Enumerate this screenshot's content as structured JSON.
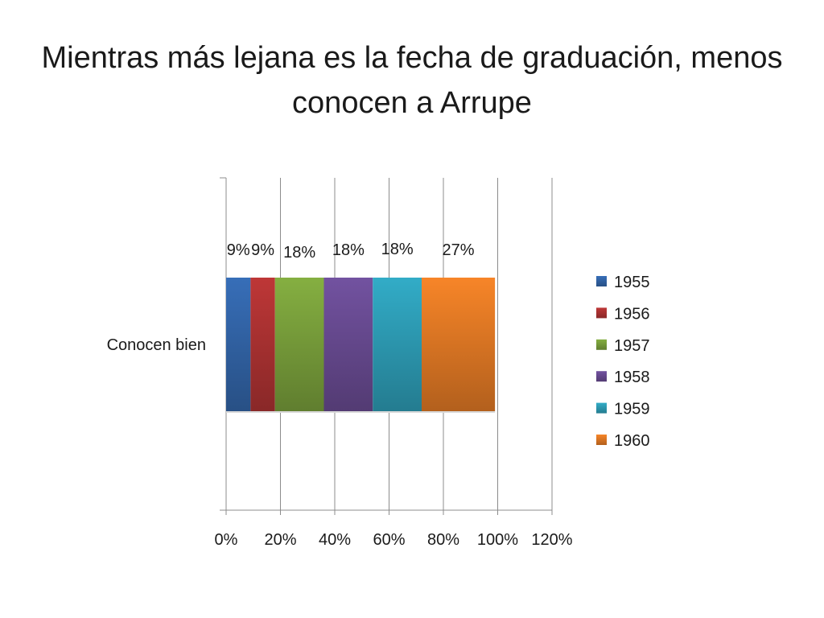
{
  "title": "Mientras más lejana es la fecha de graduación, menos conocen a Arrupe",
  "chart_data": {
    "type": "bar",
    "orientation": "horizontal",
    "stacked": true,
    "categories": [
      "Conocen bien"
    ],
    "series": [
      {
        "name": "1955",
        "values": [
          9
        ],
        "label": "9%",
        "color": "#3366aa"
      },
      {
        "name": "1956",
        "values": [
          9
        ],
        "label": "9%",
        "color": "#b03333"
      },
      {
        "name": "1957",
        "values": [
          18
        ],
        "label": "18%",
        "color": "#7ba23c"
      },
      {
        "name": "1958",
        "values": [
          18
        ],
        "label": "18%",
        "color": "#6a4c94"
      },
      {
        "name": "1959",
        "values": [
          18
        ],
        "label": "18%",
        "color": "#2e9fb8"
      },
      {
        "name": "1960",
        "values": [
          27
        ],
        "label": "27%",
        "color": "#e57b25"
      }
    ],
    "x_ticks": [
      "0%",
      "20%",
      "40%",
      "60%",
      "80%",
      "100%",
      "120%"
    ],
    "xlim": [
      0,
      120
    ],
    "grid": "vertical",
    "legend": "right"
  }
}
